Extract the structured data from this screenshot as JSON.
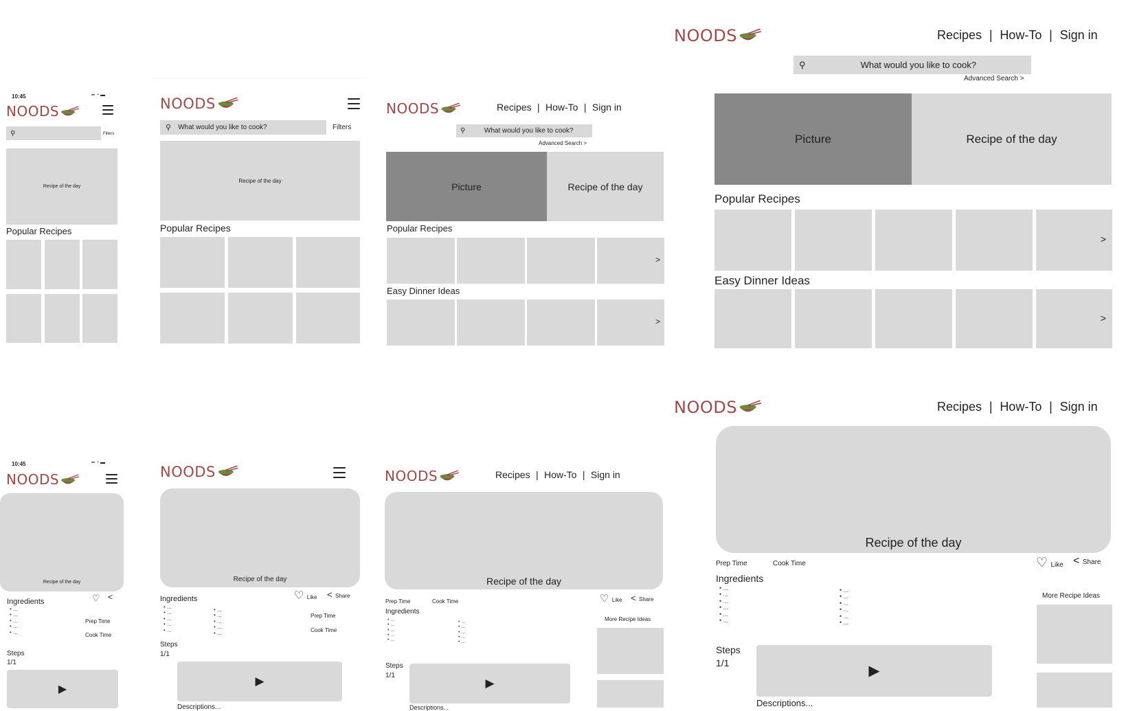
{
  "brand": {
    "name": "NOODS"
  },
  "status_bar": {
    "time": "10:45"
  },
  "nav": {
    "recipes": "Recipes",
    "howto": "How-To",
    "signin": "Sign in",
    "sep": "|"
  },
  "search": {
    "placeholder": "What would you like to cook?",
    "filters": "Filters",
    "advanced": "Advanced Search >"
  },
  "home": {
    "picture": "Picture",
    "recipe_of_day": "Recipe of the day",
    "popular": "Popular Recipes",
    "easy_dinner": "Easy Dinner Ideas",
    "next_arrow": ">"
  },
  "recipe": {
    "title": "Recipe of the day",
    "ingredients": "Ingredients",
    "prep_time": "Prep Time",
    "cook_time": "Cook Time",
    "like": "Like",
    "share": "Share",
    "steps": "Steps",
    "step_count": "1/1",
    "descriptions": "Descriptions...",
    "more_ideas": "More Recipe Ideas",
    "bullet_item": "• ..."
  },
  "icons": {
    "search": "search-icon",
    "menu": "hamburger-menu-icon",
    "like": "heart-icon",
    "share": "share-icon",
    "play": "play-icon",
    "battery": "status-icons"
  }
}
